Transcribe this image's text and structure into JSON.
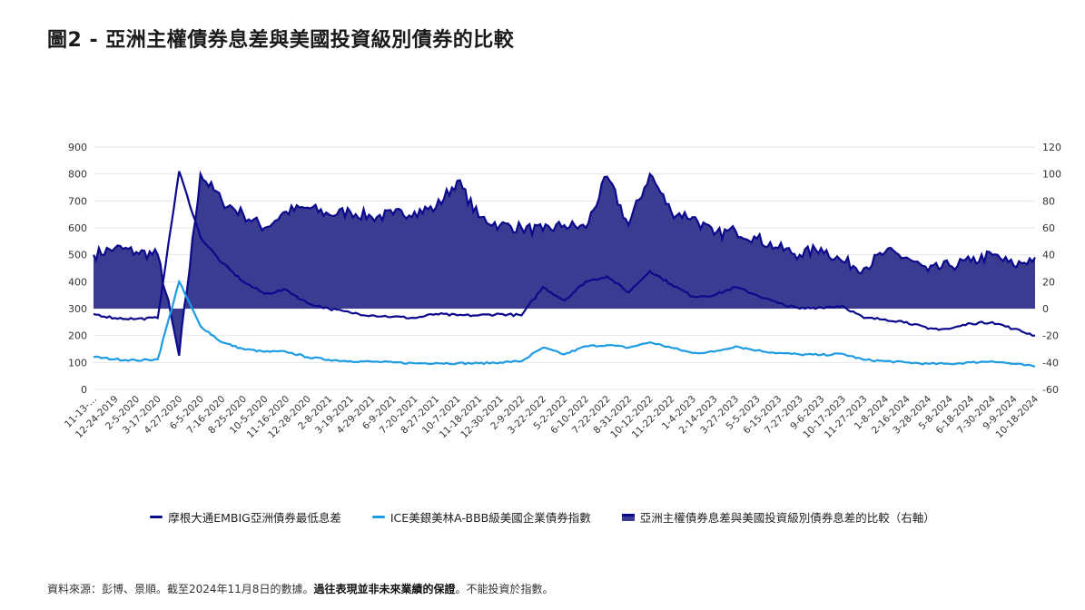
{
  "title": "圖2 - 亞洲主權債券息差與美國投資級別債券的比較",
  "footer": {
    "source": "資料來源：彭博、景順。截至2024年11月8日的數據。",
    "bold": "過往表現並非未來業績的保證",
    "tail": "。不能投資於指數。"
  },
  "legend": {
    "s1": "摩根大通EMBIG亞洲債券最低息差",
    "s2": "ICE美銀美林A-BBB級美國企業債券指數",
    "s3": "亞洲主權債券息差與美國投資級別債券息差的比較（右軸）"
  },
  "colors": {
    "s1": "#0b0a8c",
    "s2": "#1e9be3",
    "s3_fill": "#3b3b91",
    "s3_line": "#0b0a8c",
    "grid": "#e6e6e6"
  },
  "chart_data": {
    "type": "line",
    "left_axis": {
      "ylim": [
        0,
        900
      ],
      "ticks": [
        "0",
        "100",
        "200",
        "300",
        "400",
        "500",
        "600",
        "700",
        "800",
        "900"
      ]
    },
    "right_axis": {
      "ylim": [
        -60,
        120
      ],
      "ticks": [
        "-60",
        "-40",
        "-20",
        "0",
        "20",
        "40",
        "60",
        "80",
        "100",
        "120"
      ]
    },
    "categories": [
      "11-13-…",
      "12-24-2019",
      "2-5-2020",
      "3-17-2020",
      "4-27-2020",
      "6-5-2020",
      "7-16-2020",
      "8-25-2020",
      "10-5-2020",
      "11-16-2020",
      "12-28-2020",
      "2-8-2021",
      "3-19-2021",
      "4-29-2021",
      "6-9-2021",
      "7-20-2021",
      "8-27-2021",
      "10-7-2021",
      "11-18-2021",
      "12-30-2021",
      "2-9-2022",
      "3-22-2022",
      "5-2-2022",
      "6-10-2022",
      "7-22-2022",
      "8-31-2022",
      "10-12-2022",
      "11-22-2022",
      "1-4-2023",
      "2-14-2023",
      "3-27-2023",
      "5-5-2023",
      "6-15-2023",
      "7-27-2023",
      "9-6-2023",
      "10-17-2023",
      "11-27-2023",
      "1-8-2024",
      "2-16-2024",
      "3-28-2024",
      "5-8-2024",
      "6-18-2024",
      "7-30-2024",
      "9-9-2024",
      "10-18-2024"
    ],
    "series": [
      {
        "name": "摩根大通EMBIG亞洲債券最低息差",
        "axis": "left",
        "values": [
          280,
          265,
          262,
          265,
          810,
          565,
          470,
          400,
          355,
          370,
          320,
          300,
          285,
          275,
          270,
          265,
          280,
          275,
          275,
          280,
          275,
          380,
          330,
          400,
          420,
          360,
          440,
          390,
          345,
          350,
          380,
          350,
          320,
          300,
          305,
          310,
          265,
          260,
          250,
          225,
          225,
          245,
          250,
          225,
          200
        ]
      },
      {
        "name": "ICE美銀美林A-BBB級美國企業債券指數",
        "axis": "left",
        "values": [
          120,
          112,
          108,
          112,
          400,
          235,
          175,
          150,
          140,
          140,
          120,
          110,
          105,
          103,
          100,
          97,
          98,
          97,
          97,
          100,
          105,
          155,
          130,
          160,
          165,
          155,
          175,
          155,
          135,
          140,
          160,
          145,
          135,
          130,
          128,
          132,
          110,
          105,
          100,
          95,
          95,
          100,
          105,
          95,
          85
        ]
      },
      {
        "name": "亞洲主權債券息差與美國投資級別債券息差的比較（右軸）",
        "axis": "right",
        "values": [
          40,
          45,
          42,
          40,
          -35,
          100,
          80,
          70,
          60,
          72,
          75,
          70,
          72,
          68,
          70,
          72,
          75,
          95,
          68,
          62,
          60,
          58,
          62,
          60,
          98,
          62,
          100,
          72,
          68,
          55,
          58,
          52,
          45,
          40,
          45,
          35,
          30,
          42,
          38,
          28,
          32,
          35,
          40,
          32,
          38
        ]
      }
    ]
  }
}
